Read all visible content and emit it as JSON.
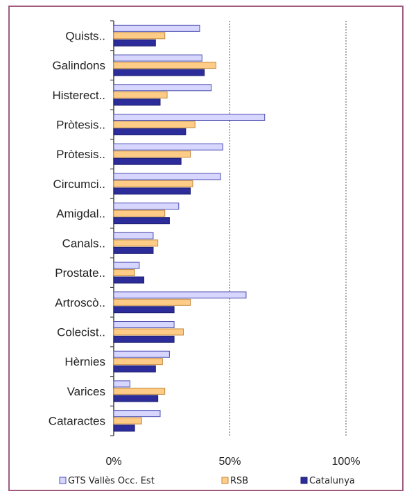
{
  "chart_data": {
    "type": "bar",
    "orientation": "horizontal",
    "categories": [
      "Quists..",
      "Galindons",
      "Histerect..",
      "Pròtesis..",
      "Pròtesis..",
      "Circumci..",
      "Amigdal..",
      "Canals..",
      "Prostate..",
      "Artroscò..",
      "Colecist..",
      "Hèrnies",
      "Varices",
      "Cataractes"
    ],
    "series": [
      {
        "name": "GTS Vallès  Occ. Est",
        "values": [
          37,
          38,
          42,
          65,
          47,
          46,
          28,
          17,
          11,
          57,
          26,
          24,
          7,
          20
        ]
      },
      {
        "name": "RSB",
        "values": [
          22,
          44,
          23,
          35,
          33,
          34,
          22,
          19,
          9,
          33,
          30,
          21,
          22,
          12
        ]
      },
      {
        "name": "Catalunya",
        "values": [
          18,
          39,
          20,
          31,
          29,
          33,
          24,
          17,
          13,
          26,
          26,
          18,
          19,
          9
        ]
      }
    ],
    "xlim": [
      0,
      100
    ],
    "xticks": [
      "0%",
      "50%",
      "100%"
    ],
    "grid": "vertical dashed at 50% and 100%",
    "legend_position": "bottom",
    "colors": {
      "series_fill": [
        "#d6d6ff",
        "#ffcc88",
        "#2c2c9a"
      ],
      "series_stroke": [
        "#4d4db0",
        "#c08a40",
        "#1c1c70"
      ],
      "axis": "#444444",
      "grid": "#555555",
      "frame": "#a05a80"
    }
  }
}
